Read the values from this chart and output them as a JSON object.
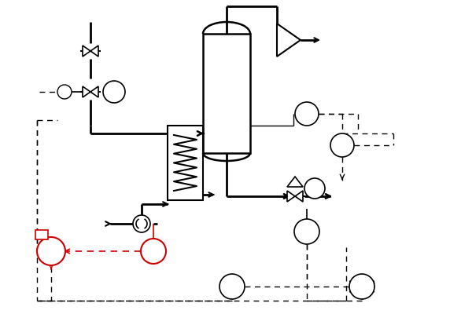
{
  "bg_color": "#ffffff",
  "black": "#000000",
  "red": "#cc0000",
  "figsize": [
    5.72,
    4.0
  ],
  "dpi": 100
}
